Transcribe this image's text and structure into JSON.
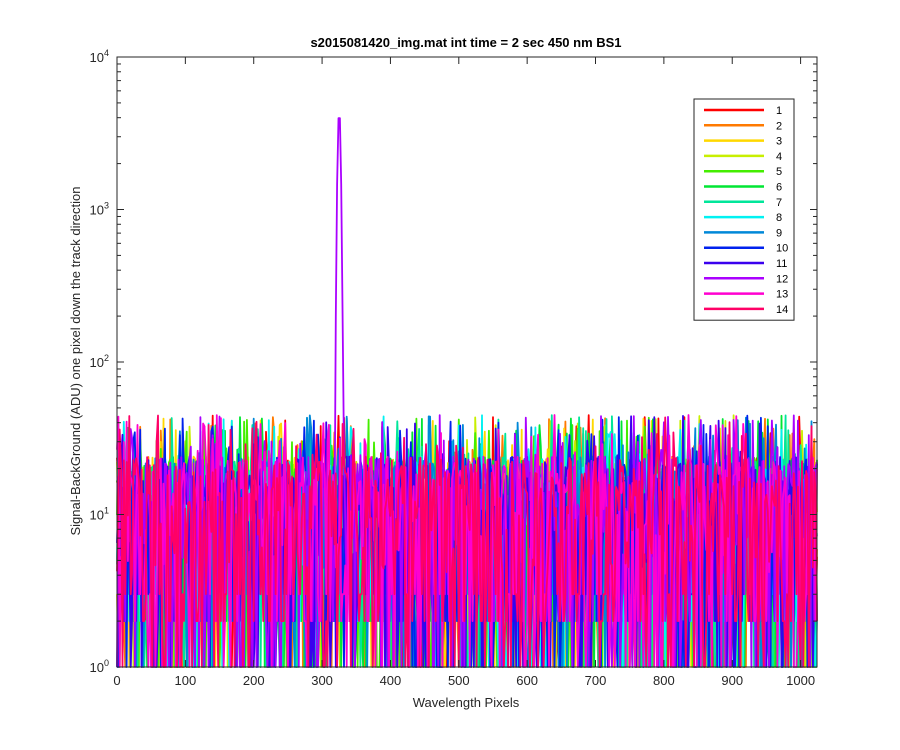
{
  "chart_data": {
    "type": "line",
    "title": "s2015081420_img.mat int time = 2 sec  450 nm BS1",
    "xlabel": "Wavelength Pixels",
    "ylabel": "Signal-BackGround (ADU) one pixel down the track direction",
    "xlim": [
      0,
      1024
    ],
    "ylim": [
      1,
      10000
    ],
    "yscale": "log",
    "grid": false,
    "legend_position": "top-right",
    "x_ticks": [
      0,
      100,
      200,
      300,
      400,
      500,
      600,
      700,
      800,
      900,
      1000
    ],
    "x_tick_labels": [
      "0",
      "100",
      "200",
      "300",
      "400",
      "500",
      "600",
      "700",
      "800",
      "900",
      "1000"
    ],
    "y_ticks": [
      {
        "value": 1,
        "base": "10",
        "exp": "0"
      },
      {
        "value": 10,
        "base": "10",
        "exp": "1"
      },
      {
        "value": 100,
        "base": "10",
        "exp": "2"
      },
      {
        "value": 1000,
        "base": "10",
        "exp": "3"
      },
      {
        "value": 10000,
        "base": "10",
        "exp": "4"
      }
    ],
    "noise_description": {
      "x_range": [
        0,
        1024
      ],
      "y_typical_range": [
        1,
        45
      ]
    },
    "peak": {
      "series": "12",
      "x": 325,
      "y": 4500,
      "start_x": 319,
      "end_x": 331
    },
    "series": [
      {
        "name": "1",
        "color": "#ff0000"
      },
      {
        "name": "2",
        "color": "#ff7a00"
      },
      {
        "name": "3",
        "color": "#ffd800"
      },
      {
        "name": "4",
        "color": "#c8ef00"
      },
      {
        "name": "5",
        "color": "#44ee00"
      },
      {
        "name": "6",
        "color": "#00e633"
      },
      {
        "name": "7",
        "color": "#00e69a"
      },
      {
        "name": "8",
        "color": "#00f2f2"
      },
      {
        "name": "9",
        "color": "#0088d8"
      },
      {
        "name": "10",
        "color": "#0022ee"
      },
      {
        "name": "11",
        "color": "#3a00ee"
      },
      {
        "name": "12",
        "color": "#aa00ff"
      },
      {
        "name": "13",
        "color": "#ff00d0"
      },
      {
        "name": "14",
        "color": "#ff0066"
      }
    ]
  }
}
